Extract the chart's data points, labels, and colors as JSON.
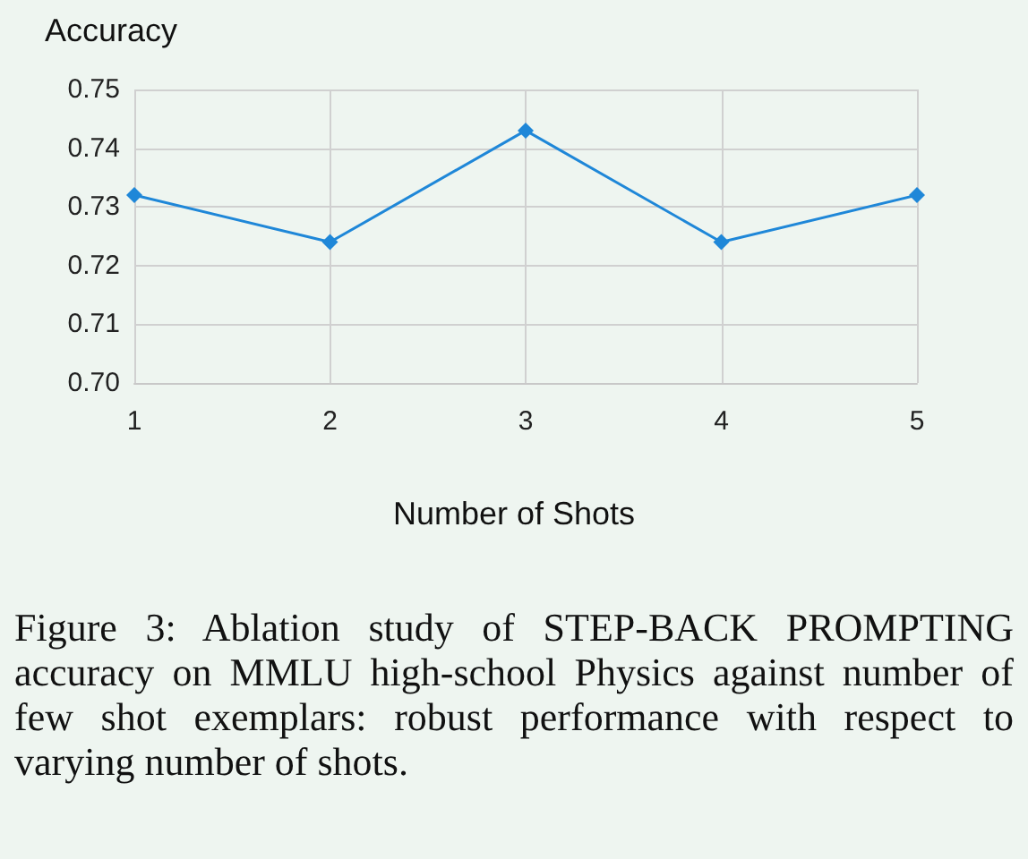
{
  "chart_data": {
    "type": "line",
    "ylabel": "Accuracy",
    "xlabel": "Number of Shots",
    "categories": [
      "1",
      "2",
      "3",
      "4",
      "5"
    ],
    "series": [
      {
        "color": "#1f87d8",
        "values": [
          0.732,
          0.724,
          0.743,
          0.724,
          0.732
        ]
      }
    ],
    "ylim": [
      0.7,
      0.75
    ],
    "yticks": [
      {
        "value": 0.7,
        "label": "0.70"
      },
      0.71,
      0.72,
      0.73,
      0.74,
      0.75
    ],
    "grid": true,
    "marker": "diamond",
    "line_style": "solid",
    "annotations": [
      "Figure 3: Ablation study of STEP-BACK PROMPTING accuracy on MMLU high-school Physics against number of few shot exemplars: robust performance with respect to varying number of shots."
    ]
  }
}
